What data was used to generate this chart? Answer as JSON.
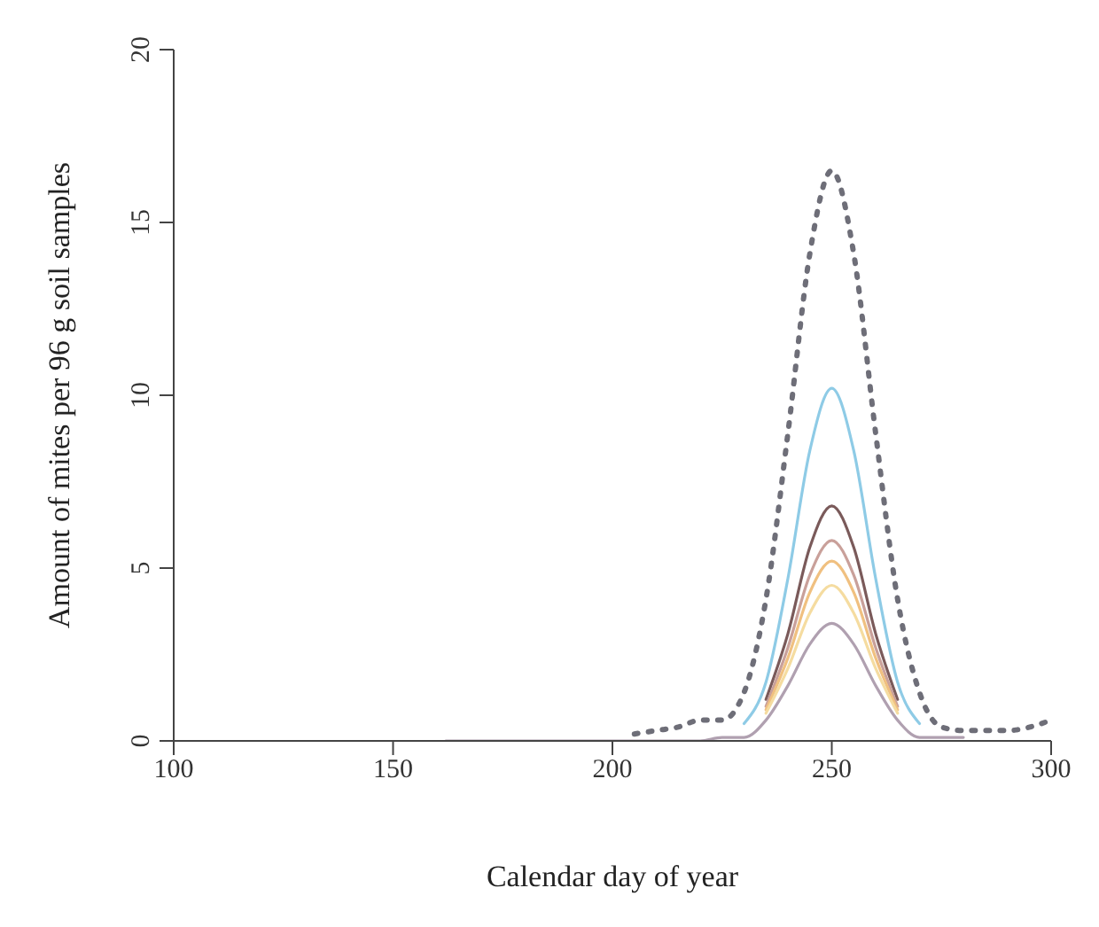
{
  "chart_data": {
    "type": "line",
    "xlabel": "Calendar  day of year",
    "ylabel": "Amount of mites per 96 g soil samples",
    "x": [
      162,
      200,
      205,
      210,
      215,
      220,
      225,
      230,
      235,
      240,
      245,
      250,
      255,
      260,
      265,
      270,
      275,
      280,
      290,
      300
    ],
    "series": [
      {
        "color": "#6e6e78",
        "line_style": "dotted",
        "values": [
          null,
          null,
          0.2,
          0.3,
          0.4,
          0.6,
          0.6,
          1.4,
          4.1,
          8.9,
          14.1,
          16.5,
          14.1,
          8.9,
          4.1,
          1.4,
          0.4,
          0.3,
          0.3,
          0.6
        ]
      },
      {
        "color": "#8ecbe6",
        "values": [
          null,
          null,
          null,
          null,
          null,
          null,
          null,
          0.5,
          1.7,
          4.7,
          8.4,
          10.2,
          8.4,
          4.7,
          1.7,
          0.5,
          null,
          null,
          null,
          null
        ]
      },
      {
        "color": "#7a5a5a",
        "values": [
          null,
          null,
          null,
          null,
          null,
          null,
          null,
          null,
          1.2,
          3.1,
          5.6,
          6.8,
          5.6,
          3.1,
          1.2,
          null,
          null,
          null,
          null,
          null
        ]
      },
      {
        "color": "#c9a09a",
        "values": [
          null,
          null,
          null,
          null,
          null,
          null,
          null,
          null,
          1.0,
          2.7,
          4.8,
          5.8,
          4.8,
          2.7,
          1.0,
          null,
          null,
          null,
          null,
          null
        ]
      },
      {
        "color": "#f0c080",
        "values": [
          null,
          null,
          null,
          null,
          null,
          null,
          null,
          null,
          0.9,
          2.4,
          4.3,
          5.2,
          4.3,
          2.4,
          0.9,
          null,
          null,
          null,
          null,
          null
        ]
      },
      {
        "color": "#f5dca0",
        "values": [
          null,
          null,
          null,
          null,
          null,
          null,
          null,
          null,
          0.8,
          2.1,
          3.7,
          4.5,
          3.7,
          2.1,
          0.8,
          null,
          null,
          null,
          null,
          null
        ]
      },
      {
        "color": "#b0a0b0",
        "values": [
          0,
          0,
          0,
          0,
          0,
          0,
          0.1,
          0.1,
          0.6,
          1.6,
          2.8,
          3.4,
          2.8,
          1.6,
          0.6,
          0.1,
          0.1,
          0.1,
          null,
          null
        ]
      }
    ],
    "xlim": [
      100,
      300
    ],
    "xticks": [
      100,
      150,
      200,
      250,
      300
    ],
    "ylim": [
      0,
      20
    ],
    "yticks": [
      0,
      5,
      10,
      15,
      20
    ],
    "grid": false,
    "legend": false,
    "marker": "none"
  }
}
